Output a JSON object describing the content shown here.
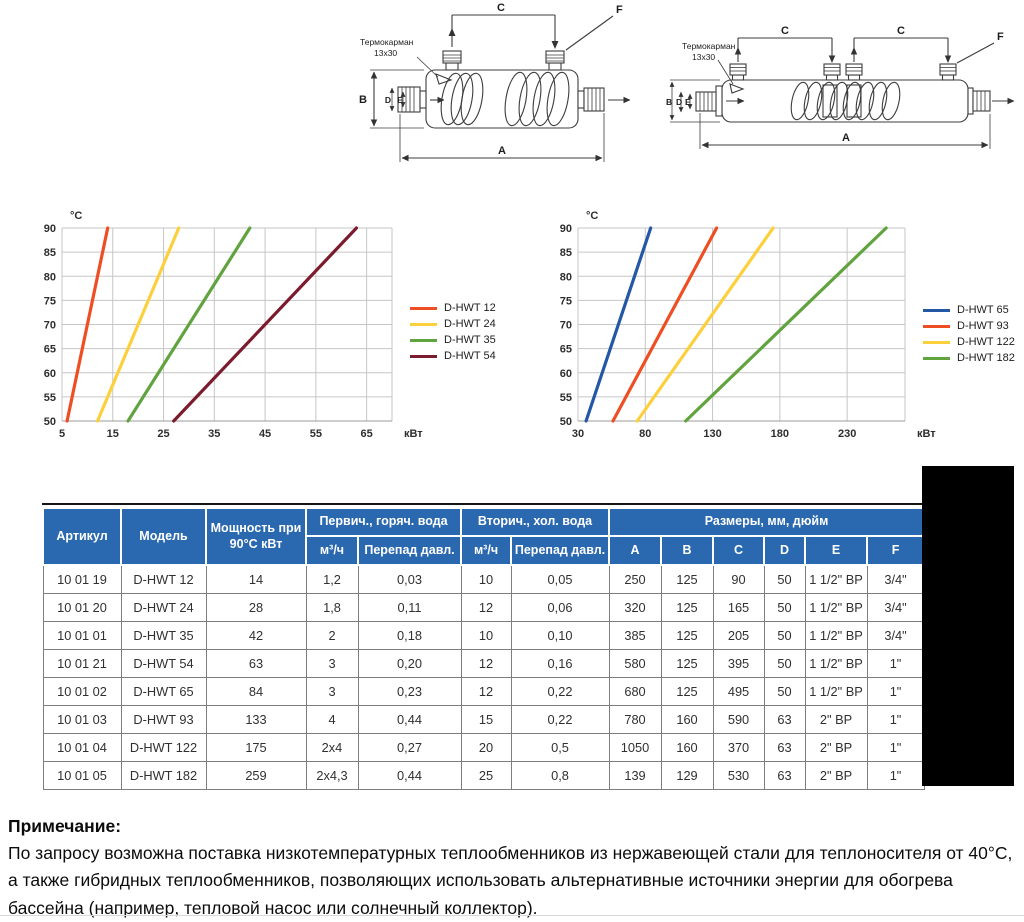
{
  "diagrams": {
    "thermowell_line1": "Термокарман",
    "thermowell_line2": "13x30",
    "dim_a": "A",
    "dim_b": "B",
    "dim_c": "C",
    "dim_d": "D",
    "dim_e": "E",
    "dim_f": "F"
  },
  "chart_data": [
    {
      "type": "line",
      "title": "",
      "xlabel": "кВт",
      "ylabel": "°C",
      "xlim": [
        5,
        70
      ],
      "ylim": [
        50,
        90
      ],
      "xticks": [
        5,
        15,
        25,
        35,
        45,
        55,
        65
      ],
      "yticks": [
        50,
        55,
        60,
        65,
        70,
        75,
        80,
        85,
        90
      ],
      "grid": true,
      "legend_position": "right",
      "series": [
        {
          "name": "D-HWT 12",
          "color": "#ee4e23",
          "points": [
            [
              6,
              50
            ],
            [
              14,
              90
            ]
          ]
        },
        {
          "name": "D-HWT 24",
          "color": "#fcd03c",
          "points": [
            [
              12,
              50
            ],
            [
              28,
              90
            ]
          ]
        },
        {
          "name": "D-HWT 35",
          "color": "#61a33e",
          "points": [
            [
              18,
              50
            ],
            [
              42,
              90
            ]
          ]
        },
        {
          "name": "D-HWT 54",
          "color": "#7c1b2e",
          "points": [
            [
              27,
              50
            ],
            [
              63,
              90
            ]
          ]
        }
      ]
    },
    {
      "type": "line",
      "title": "",
      "xlabel": "кВт",
      "ylabel": "°C",
      "xlim": [
        30,
        273
      ],
      "ylim": [
        50,
        90
      ],
      "xticks": [
        30,
        80,
        130,
        180,
        230
      ],
      "yticks": [
        50,
        55,
        60,
        65,
        70,
        75,
        80,
        85,
        90
      ],
      "grid": true,
      "legend_position": "right",
      "series": [
        {
          "name": "D-HWT 65",
          "color": "#2457a4",
          "points": [
            [
              36,
              50
            ],
            [
              84,
              90
            ]
          ]
        },
        {
          "name": "D-HWT 93",
          "color": "#ee4e23",
          "points": [
            [
              56,
              50
            ],
            [
              133,
              90
            ]
          ]
        },
        {
          "name": "D-HWT 122",
          "color": "#fcd03c",
          "points": [
            [
              74,
              50
            ],
            [
              175,
              90
            ]
          ]
        },
        {
          "name": "D-HWT 182",
          "color": "#61a33e",
          "points": [
            [
              110,
              50
            ],
            [
              259,
              90
            ]
          ]
        }
      ]
    }
  ],
  "table": {
    "header": {
      "artikul": "Артикул",
      "model": "Модель",
      "power": "Мощность при 90°С кВт",
      "primary_group": "Первич., горяч. вода",
      "secondary_group": "Вторич., хол. вода",
      "dims_group": "Размеры, мм, дюйм",
      "flow": "м³/ч",
      "pressure_drop": "Перепад давл.",
      "dims": [
        "A",
        "B",
        "C",
        "D",
        "E",
        "F"
      ]
    },
    "rows": [
      [
        "10 01 19",
        "D-HWT 12",
        "14",
        "1,2",
        "0,03",
        "10",
        "0,05",
        "250",
        "125",
        "90",
        "50",
        "1 1/2\" ВР",
        "3/4\""
      ],
      [
        "10 01 20",
        "D-HWT 24",
        "28",
        "1,8",
        "0,11",
        "12",
        "0,06",
        "320",
        "125",
        "165",
        "50",
        "1 1/2\" ВР",
        "3/4\""
      ],
      [
        "10 01 01",
        "D-HWT 35",
        "42",
        "2",
        "0,18",
        "10",
        "0,10",
        "385",
        "125",
        "205",
        "50",
        "1 1/2\" ВР",
        "3/4\""
      ],
      [
        "10 01 21",
        "D-HWT 54",
        "63",
        "3",
        "0,20",
        "12",
        "0,16",
        "580",
        "125",
        "395",
        "50",
        "1 1/2\" ВР",
        "1\""
      ],
      [
        "10 01 02",
        "D-HWT 65",
        "84",
        "3",
        "0,23",
        "12",
        "0,22",
        "680",
        "125",
        "495",
        "50",
        "1 1/2\" ВР",
        "1\""
      ],
      [
        "10 01 03",
        "D-HWT 93",
        "133",
        "4",
        "0,44",
        "15",
        "0,22",
        "780",
        "160",
        "590",
        "63",
        "2\" ВР",
        "1\""
      ],
      [
        "10 01 04",
        "D-HWT 122",
        "175",
        "2x4",
        "0,27",
        "20",
        "0,5",
        "1050",
        "160",
        "370",
        "63",
        "2\" ВР",
        "1\""
      ],
      [
        "10 01 05",
        "D-HWT 182",
        "259",
        "2x4,3",
        "0,44",
        "25",
        "0,8",
        "139",
        "129",
        "530",
        "63",
        "2\" ВР",
        "1\""
      ]
    ]
  },
  "note": {
    "title": "Примечание:",
    "text": "По запросу возможна поставка низкотемпературных теплообменников из нержавеющей стали для теплоносителя от 40°С, а также гибридных теплообменников, позволяющих использовать альтернативные источники энергии для обогрева бассейна (например, тепловой насос или солнечный коллектор)."
  },
  "colors": {
    "table_header_blue": "#2a69b0",
    "grid_gray": "#c6c6c6",
    "redaction_black": "#000000"
  }
}
